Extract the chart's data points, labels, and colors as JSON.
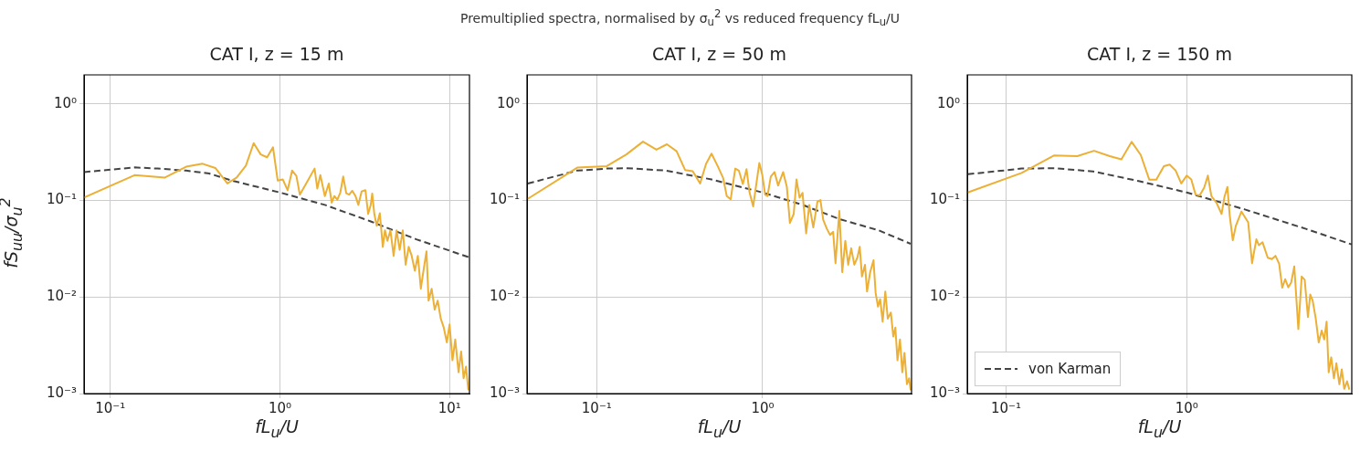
{
  "chart_data": [
    {
      "type": "line",
      "title": "CAT I, z = 15 m",
      "xlabel": "fL$_{u}$/U",
      "ylabel": "fS$_{uu}$/σ$_{u}$$^{2}$",
      "annotations": [
        "Premultiplied spectra, normalised by σ$_{u}$$^{2}$ vs reduced frequency fL$_{u}$/U"
      ],
      "log": "xy",
      "grid": true,
      "xlim": [
        0.07,
        13.1
      ],
      "ylim": [
        0.001,
        2
      ],
      "xticks": [
        {
          "value": 0.1,
          "label": "10⁻¹"
        },
        {
          "value": 1,
          "label": "10⁰"
        },
        {
          "value": 10,
          "label": "10¹"
        }
      ],
      "yticks": [
        {
          "value": 0.001,
          "label": "10⁻³"
        },
        {
          "value": 0.01,
          "label": "10⁻²"
        },
        {
          "value": 0.1,
          "label": "10⁻¹"
        },
        {
          "value": 1,
          "label": "10⁰"
        }
      ],
      "series": [
        {
          "color": "#ebb035",
          "line_style": "solid",
          "x": [
            0.07,
            0.139,
            0.21,
            0.28,
            0.35,
            0.416,
            0.49,
            0.556,
            0.63,
            0.7,
            0.77,
            0.84,
            0.91,
            0.97,
            1.04,
            1.11,
            1.18,
            1.25,
            1.31,
            1.44,
            1.6,
            1.66,
            1.73,
            1.84,
            1.94,
            2.02,
            2.09,
            2.18,
            2.27,
            2.36,
            2.46,
            2.56,
            2.67,
            2.79,
            2.9,
            3.03,
            3.19,
            3.31,
            3.43,
            3.5,
            3.6,
            3.72,
            3.88,
            4.04,
            4.16,
            4.3,
            4.48,
            4.68,
            4.87,
            5.08,
            5.3,
            5.51,
            5.74,
            5.98,
            6.24,
            6.5,
            6.77,
            7.06,
            7.31,
            7.52,
            7.84,
            8.17,
            8.51,
            8.87,
            9.24,
            9.64,
            10.0,
            10.4,
            10.8,
            11.3,
            11.7,
            12.1,
            12.5,
            12.9
          ],
          "values": [
            0.107,
            0.183,
            0.173,
            0.224,
            0.24,
            0.217,
            0.15,
            0.173,
            0.23,
            0.393,
            0.3,
            0.28,
            0.356,
            0.161,
            0.165,
            0.128,
            0.204,
            0.18,
            0.115,
            0.154,
            0.214,
            0.133,
            0.183,
            0.111,
            0.15,
            0.095,
            0.111,
            0.102,
            0.121,
            0.177,
            0.119,
            0.115,
            0.126,
            0.111,
            0.09,
            0.124,
            0.128,
            0.0726,
            0.09,
            0.118,
            0.0726,
            0.0546,
            0.0737,
            0.0331,
            0.049,
            0.0382,
            0.049,
            0.0267,
            0.049,
            0.0308,
            0.049,
            0.0216,
            0.0331,
            0.0267,
            0.0187,
            0.0267,
            0.0122,
            0.0201,
            0.0298,
            0.00918,
            0.0122,
            0.00741,
            0.00918,
            0.00598,
            0.00483,
            0.00339,
            0.0052,
            0.00221,
            0.00363,
            0.00166,
            0.00273,
            0.00144,
            0.0019,
            0.00108
          ]
        },
        {
          "color": "#444444",
          "line_style": "dashed",
          "x": [
            0.07,
            0.139,
            0.19,
            0.28,
            0.383,
            0.533,
            1.0,
            1.84,
            3.43,
            6.37,
            13.0
          ],
          "values": [
            0.197,
            0.22,
            0.214,
            0.204,
            0.19,
            0.159,
            0.121,
            0.09,
            0.0607,
            0.0396,
            0.0258
          ]
        }
      ]
    },
    {
      "type": "line",
      "title": "CAT I, z = 50 m",
      "xlabel": "fL$_{u}$/U",
      "log": "xy",
      "grid": true,
      "xlim": [
        0.038,
        7.9
      ],
      "ylim": [
        0.001,
        2
      ],
      "xticks": [
        {
          "value": 0.1,
          "label": "10⁻¹"
        },
        {
          "value": 1,
          "label": "10⁰"
        }
      ],
      "yticks": [
        {
          "value": 0.001,
          "label": "10⁻³"
        },
        {
          "value": 0.01,
          "label": "10⁻²"
        },
        {
          "value": 0.1,
          "label": "10⁻¹"
        },
        {
          "value": 1,
          "label": "10⁰"
        }
      ],
      "series": [
        {
          "color": "#ebb035",
          "line_style": "solid",
          "x": [
            0.0384,
            0.0763,
            0.115,
            0.151,
            0.19,
            0.229,
            0.265,
            0.303,
            0.341,
            0.379,
            0.42,
            0.456,
            0.492,
            0.536,
            0.578,
            0.608,
            0.642,
            0.684,
            0.719,
            0.76,
            0.8,
            0.834,
            0.877,
            0.916,
            0.955,
            0.996,
            1.035,
            1.07,
            1.12,
            1.18,
            1.24,
            1.33,
            1.4,
            1.46,
            1.54,
            1.6,
            1.67,
            1.74,
            1.83,
            1.91,
            2.02,
            2.14,
            2.23,
            2.32,
            2.44,
            2.55,
            2.66,
            2.75,
            2.9,
            3.02,
            3.15,
            3.28,
            3.42,
            3.57,
            3.73,
            3.85,
            3.97,
            4.14,
            4.26,
            4.45,
            4.66,
            4.8,
            4.96,
            5.11,
            5.29,
            5.49,
            5.68,
            5.93,
            6.13,
            6.31,
            6.5,
            6.73,
            6.95,
            7.16,
            7.41,
            7.64,
            7.8
          ],
          "values": [
            0.104,
            0.219,
            0.227,
            0.3,
            0.407,
            0.336,
            0.382,
            0.324,
            0.207,
            0.201,
            0.15,
            0.239,
            0.306,
            0.227,
            0.171,
            0.111,
            0.103,
            0.214,
            0.204,
            0.148,
            0.211,
            0.121,
            0.0867,
            0.148,
            0.244,
            0.183,
            0.115,
            0.111,
            0.177,
            0.197,
            0.143,
            0.197,
            0.138,
            0.0586,
            0.0726,
            0.165,
            0.107,
            0.12,
            0.0456,
            0.09,
            0.0526,
            0.0973,
            0.101,
            0.0629,
            0.0508,
            0.044,
            0.0473,
            0.0224,
            0.078,
            0.0181,
            0.0382,
            0.0216,
            0.032,
            0.0216,
            0.0258,
            0.0331,
            0.0163,
            0.0216,
            0.0114,
            0.0181,
            0.024,
            0.011,
            0.00796,
            0.0095,
            0.00557,
            0.0114,
            0.00598,
            0.0069,
            0.0039,
            0.00483,
            0.00221,
            0.00363,
            0.00166,
            0.00264,
            0.00125,
            0.00144,
            0.00108
          ]
        },
        {
          "color": "#444444",
          "line_style": "dashed",
          "x": [
            0.0384,
            0.0763,
            0.115,
            0.151,
            0.262,
            0.492,
            1.0,
            1.74,
            2.9,
            5.01,
            7.8
          ],
          "values": [
            0.15,
            0.204,
            0.214,
            0.216,
            0.204,
            0.165,
            0.121,
            0.09,
            0.0643,
            0.049,
            0.0356
          ]
        }
      ]
    },
    {
      "type": "line",
      "title": "CAT I, z = 150 m",
      "xlabel": "fL$_{u}$/U",
      "log": "xy",
      "grid": true,
      "legend": "bottom left",
      "xlim": [
        0.061,
        8.2
      ],
      "ylim": [
        0.001,
        2
      ],
      "xticks": [
        {
          "value": 0.1,
          "label": "10⁻¹"
        },
        {
          "value": 1,
          "label": "10⁰"
        }
      ],
      "yticks": [
        {
          "value": 0.001,
          "label": "10⁻³"
        },
        {
          "value": 0.01,
          "label": "10⁻²"
        },
        {
          "value": 0.1,
          "label": "10⁻¹"
        },
        {
          "value": 1,
          "label": "10⁰"
        }
      ],
      "series": [
        {
          "color": "#ebb035",
          "line_style": "solid",
          "x": [
            0.0614,
            0.122,
            0.185,
            0.248,
            0.307,
            0.375,
            0.435,
            0.496,
            0.557,
            0.621,
            0.679,
            0.748,
            0.805,
            0.869,
            0.933,
            1.0,
            1.06,
            1.12,
            1.18,
            1.25,
            1.31,
            1.37,
            1.46,
            1.56,
            1.62,
            1.68,
            1.73,
            1.8,
            1.87,
            2.01,
            2.19,
            2.3,
            2.43,
            2.51,
            2.63,
            2.81,
            2.96,
            3.1,
            3.25,
            3.38,
            3.51,
            3.65,
            3.79,
            3.94,
            4.15,
            4.33,
            4.5,
            4.69,
            4.83,
            4.98,
            5.18,
            5.38,
            5.59,
            5.77,
            5.95,
            6.11,
            6.31,
            6.53,
            6.74,
            7.0,
            7.22,
            7.45,
            7.72,
            7.95
          ],
          "values": [
            0.121,
            0.193,
            0.293,
            0.288,
            0.327,
            0.288,
            0.267,
            0.405,
            0.296,
            0.164,
            0.164,
            0.227,
            0.235,
            0.204,
            0.15,
            0.181,
            0.165,
            0.115,
            0.113,
            0.136,
            0.181,
            0.111,
            0.095,
            0.0726,
            0.11,
            0.138,
            0.0702,
            0.0387,
            0.0546,
            0.0768,
            0.0594,
            0.0224,
            0.0396,
            0.0344,
            0.0369,
            0.0255,
            0.0247,
            0.0267,
            0.0221,
            0.0125,
            0.0153,
            0.0126,
            0.0142,
            0.0208,
            0.00466,
            0.0163,
            0.0151,
            0.0062,
            0.0106,
            0.00918,
            0.00598,
            0.00339,
            0.0045,
            0.00363,
            0.00557,
            0.00166,
            0.00237,
            0.00144,
            0.00206,
            0.00125,
            0.00178,
            0.00112,
            0.00134,
            0.0011
          ]
        },
        {
          "name": "von Karman",
          "color": "#444444",
          "line_style": "dashed",
          "x": [
            0.0614,
            0.122,
            0.185,
            0.303,
            0.542,
            1.0,
            2.1,
            4.57,
            8.17
          ],
          "values": [
            0.187,
            0.214,
            0.216,
            0.2,
            0.159,
            0.121,
            0.0807,
            0.0508,
            0.0351
          ]
        }
      ]
    }
  ]
}
